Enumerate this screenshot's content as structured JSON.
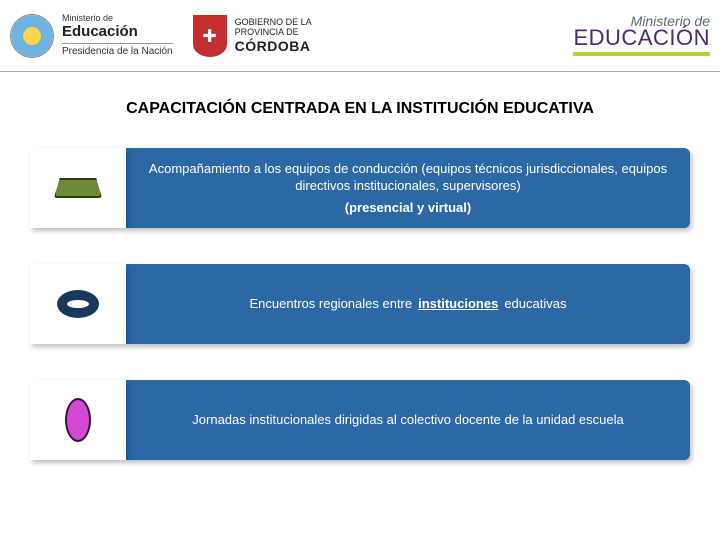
{
  "header": {
    "logo1": {
      "top": "Ministerio de",
      "mid": "Educación",
      "bot": "Presidencia de la Nación"
    },
    "logo2": {
      "top": "GOBIERNO DE LA",
      "mid": "PROVINCIA DE",
      "big": "CÓRDOBA"
    },
    "logo3": {
      "line1": "Ministerio de",
      "line2": "EDUCACIÓN"
    }
  },
  "title": "CAPACITACIÓN CENTRADA EN LA INSTITUCIÓN EDUCATIVA",
  "rows": [
    {
      "bg_color": "#2b68a4",
      "icon": "trapezoid",
      "text": "Acompañamiento a los equipos de conducción (equipos técnicos jurisdiccionales, equipos directivos institucionales, supervisores)",
      "mode": "(presencial y virtual)"
    },
    {
      "bg_color": "#2b68a4",
      "icon": "donut",
      "pre": "Encuentros regionales entre",
      "highlight": "instituciones",
      "post": "educativas"
    },
    {
      "bg_color": "#2b68a4",
      "icon": "oval",
      "text": "Jornadas institucionales dirigidas al colectivo docente de la unidad escuela"
    }
  ],
  "colors": {
    "icon_cell_bg": "#ffffff"
  }
}
